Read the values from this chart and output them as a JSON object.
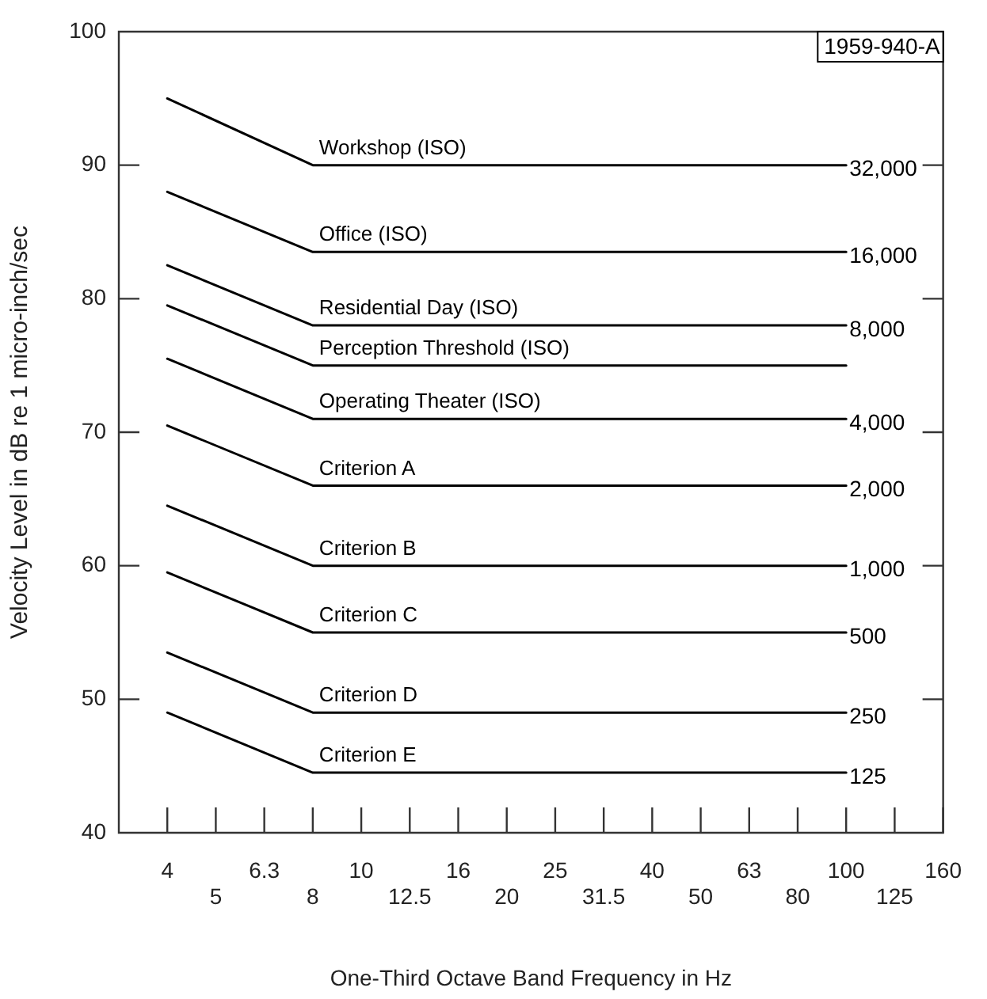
{
  "chart_data": {
    "type": "line",
    "xlabel": "One-Third Octave Band Frequency in Hz",
    "ylabel": "Velocity Level in dB re 1 micro-inch/sec",
    "categories": [
      "4",
      "5",
      "6.3",
      "8",
      "10",
      "12.5",
      "16",
      "20",
      "25",
      "31.5",
      "40",
      "50",
      "63",
      "80",
      "100",
      "125",
      "160"
    ],
    "ylim": [
      40,
      100
    ],
    "yticks": [
      40,
      50,
      60,
      70,
      80,
      90,
      100
    ],
    "grid": false,
    "legend": false,
    "marker": "none",
    "line_style": "solid",
    "series": [
      {
        "name": "Workshop (ISO)",
        "color": "#000000",
        "values": [
          95,
          null,
          null,
          90,
          null,
          null,
          null,
          null,
          null,
          null,
          null,
          null,
          null,
          null,
          90,
          null,
          null
        ]
      },
      {
        "name": "Office (ISO)",
        "color": "#000000",
        "values": [
          88,
          null,
          null,
          83.5,
          null,
          null,
          null,
          null,
          null,
          null,
          null,
          null,
          null,
          null,
          83.5,
          null,
          null
        ]
      },
      {
        "name": "Residential Day (ISO)",
        "color": "#000000",
        "values": [
          82.5,
          null,
          null,
          78,
          null,
          null,
          null,
          null,
          null,
          null,
          null,
          null,
          null,
          null,
          78,
          null,
          null
        ]
      },
      {
        "name": "Perception Threshold (ISO)",
        "color": "#000000",
        "values": [
          79.5,
          null,
          null,
          75,
          null,
          null,
          null,
          null,
          null,
          null,
          null,
          null,
          null,
          null,
          75,
          null,
          null
        ]
      },
      {
        "name": "Operating Theater (ISO)",
        "color": "#000000",
        "values": [
          75.5,
          null,
          null,
          71,
          null,
          null,
          null,
          null,
          null,
          null,
          null,
          null,
          null,
          null,
          71,
          null,
          null
        ]
      },
      {
        "name": "Criterion A",
        "color": "#000000",
        "values": [
          70.5,
          null,
          null,
          66,
          null,
          null,
          null,
          null,
          null,
          null,
          null,
          null,
          null,
          null,
          66,
          null,
          null
        ]
      },
      {
        "name": "Criterion B",
        "color": "#000000",
        "values": [
          64.5,
          null,
          null,
          60,
          null,
          null,
          null,
          null,
          null,
          null,
          null,
          null,
          null,
          null,
          60,
          null,
          null
        ]
      },
      {
        "name": "Criterion C",
        "color": "#000000",
        "values": [
          59.5,
          null,
          null,
          55,
          null,
          null,
          null,
          null,
          null,
          null,
          null,
          null,
          null,
          null,
          55,
          null,
          null
        ]
      },
      {
        "name": "Criterion D",
        "color": "#000000",
        "values": [
          53.5,
          null,
          null,
          49,
          null,
          null,
          null,
          null,
          null,
          null,
          null,
          null,
          null,
          null,
          49,
          null,
          null
        ]
      },
      {
        "name": "Criterion E",
        "color": "#000000",
        "values": [
          49,
          null,
          null,
          44.5,
          null,
          null,
          null,
          null,
          null,
          null,
          null,
          null,
          null,
          null,
          44.5,
          null,
          null
        ]
      }
    ],
    "annotations": [
      "1959-940-A",
      {
        "text": "32,000",
        "x": "100",
        "y": 90
      },
      {
        "text": "16,000",
        "x": "100",
        "y": 83.5
      },
      {
        "text": "8,000",
        "x": "100",
        "y": 78
      },
      {
        "text": "4,000",
        "x": "100",
        "y": 71
      },
      {
        "text": "2,000",
        "x": "100",
        "y": 66
      },
      {
        "text": "1,000",
        "x": "100",
        "y": 60
      },
      {
        "text": "500",
        "x": "100",
        "y": 55
      },
      {
        "text": "250",
        "x": "100",
        "y": 49
      },
      {
        "text": "125",
        "x": "100",
        "y": 44.5
      }
    ]
  }
}
